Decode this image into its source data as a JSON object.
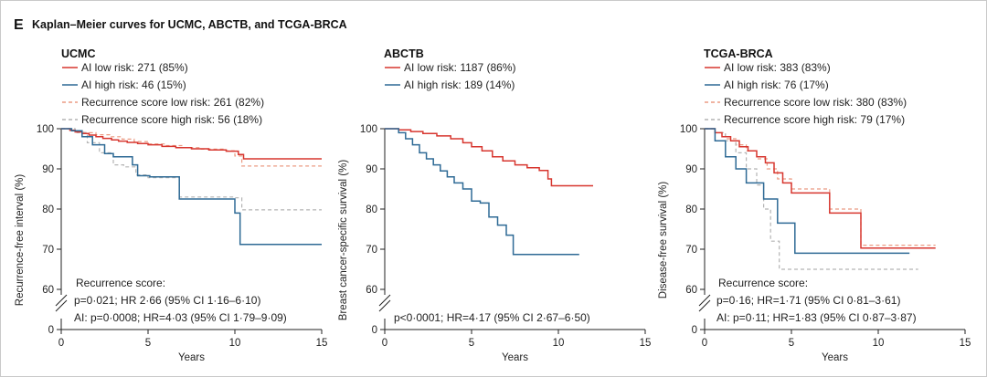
{
  "figure": {
    "panel_letter": "E",
    "title": "Kaplan–Meier curves for UCMC, ABCTB, and TCGA-BRCA"
  },
  "colors": {
    "ai_low": "#d7362f",
    "ai_high": "#2e6a95",
    "rs_low": "#eb9b83",
    "rs_high": "#b4b4b4",
    "axis": "#222222"
  },
  "chart_data": [
    {
      "type": "line",
      "title": "UCMC",
      "xlabel": "Years",
      "ylabel": "Recurrence-free interval (%)",
      "xlim": [
        0,
        15
      ],
      "xticks": [
        0,
        5,
        10,
        15
      ],
      "ylim": [
        60,
        100
      ],
      "yticks": [
        60,
        70,
        80,
        90,
        100
      ],
      "y_break": true,
      "y_break_origin_label": "0",
      "step": true,
      "legend": [
        "AI low risk: 271 (85%)",
        "AI high risk: 46 (15%)",
        "Recurrence score low risk: 261 (82%)",
        "Recurrence score high risk: 56 (18%)"
      ],
      "annotations": [
        "Recurrence score:",
        "p=0·021; HR 2·66 (95% CI 1·16–6·10)",
        "AI: p=0·0008; HR=4·03 (95% CI 1·79–9·09)"
      ],
      "series": [
        {
          "key": "ai_low",
          "dashed": false,
          "x": [
            0,
            0.5,
            0.8,
            1.2,
            1.6,
            2.0,
            2.4,
            2.9,
            3.3,
            3.8,
            4.4,
            5.0,
            5.8,
            6.6,
            7.5,
            8.5,
            9.5,
            10.2,
            10.5,
            15
          ],
          "y": [
            100,
            99.6,
            99.2,
            98.8,
            98.4,
            98.0,
            97.6,
            97.2,
            96.9,
            96.6,
            96.3,
            96.0,
            95.6,
            95.3,
            95.0,
            94.7,
            94.4,
            93.6,
            92.5,
            92.5
          ]
        },
        {
          "key": "ai_high",
          "dashed": false,
          "x": [
            0,
            0.6,
            1.2,
            1.8,
            2.5,
            3.0,
            4.1,
            4.4,
            5.1,
            6.8,
            10.0,
            10.3,
            15
          ],
          "y": [
            100,
            99.5,
            98.0,
            96.0,
            93.8,
            93.0,
            91.0,
            88.3,
            88.0,
            82.5,
            79.0,
            71.2,
            71.2
          ]
        },
        {
          "key": "rs_low",
          "dashed": true,
          "x": [
            0,
            0.7,
            1.3,
            2.0,
            2.8,
            3.5,
            4.2,
            5.0,
            6.0,
            7.0,
            8.0,
            9.5,
            10.0,
            10.4,
            15
          ],
          "y": [
            100,
            99.5,
            99.0,
            98.5,
            98.0,
            97.4,
            96.8,
            96.2,
            95.8,
            95.3,
            94.9,
            94.5,
            93.2,
            90.7,
            90.7
          ]
        },
        {
          "key": "rs_high",
          "dashed": true,
          "x": [
            0,
            0.8,
            1.5,
            2.2,
            3.0,
            3.6,
            4.3,
            5.0,
            6.8,
            10.0,
            10.4,
            15
          ],
          "y": [
            100,
            99.0,
            96.5,
            94.0,
            91.0,
            90.5,
            88.5,
            87.8,
            83.0,
            82.8,
            79.8,
            79.8
          ]
        }
      ]
    },
    {
      "type": "line",
      "title": "ABCTB",
      "xlabel": "Years",
      "ylabel": "Breast cancer-specific survival (%)",
      "xlim": [
        0,
        15
      ],
      "xticks": [
        0,
        5,
        10,
        15
      ],
      "ylim": [
        60,
        100
      ],
      "yticks": [
        60,
        70,
        80,
        90,
        100
      ],
      "y_break": true,
      "y_break_origin_label": "0",
      "step": true,
      "legend": [
        "AI low risk: 1187 (86%)",
        "AI high risk: 189 (14%)"
      ],
      "annotations": [
        "p<0·0001; HR=4·17 (95% CI 2·67–6·50)"
      ],
      "series": [
        {
          "key": "ai_low",
          "dashed": false,
          "x": [
            0,
            0.8,
            1.5,
            2.2,
            3.0,
            3.8,
            4.5,
            5.0,
            5.6,
            6.2,
            6.8,
            7.5,
            8.2,
            8.9,
            9.4,
            9.6,
            12
          ],
          "y": [
            100,
            99.7,
            99.3,
            98.8,
            98.2,
            97.5,
            96.5,
            95.5,
            94.5,
            93.0,
            92.0,
            91.0,
            90.3,
            89.6,
            87.5,
            85.8,
            85.8
          ]
        },
        {
          "key": "ai_high",
          "dashed": false,
          "x": [
            0,
            0.8,
            1.2,
            1.6,
            2.0,
            2.4,
            2.8,
            3.2,
            3.6,
            4.0,
            4.5,
            5.0,
            5.5,
            6.0,
            6.5,
            7.0,
            7.4,
            11.2
          ],
          "y": [
            100,
            99.0,
            97.5,
            96.0,
            94.0,
            92.5,
            91.0,
            89.5,
            88.0,
            86.5,
            85.0,
            82.0,
            81.5,
            78.0,
            76.0,
            73.5,
            68.7,
            68.7
          ]
        }
      ]
    },
    {
      "type": "line",
      "title": "TCGA-BRCA",
      "xlabel": "Years",
      "ylabel": "Disease-free survival (%)",
      "xlim": [
        0,
        15
      ],
      "xticks": [
        0,
        5,
        10,
        15
      ],
      "ylim": [
        60,
        100
      ],
      "yticks": [
        60,
        70,
        80,
        90,
        100
      ],
      "y_break": true,
      "y_break_origin_label": "0",
      "step": true,
      "legend": [
        "AI low risk: 383 (83%)",
        "AI high risk: 76 (17%)",
        "Recurrence score low risk: 380 (83%)",
        "Recurrence score high risk: 79 (17%)"
      ],
      "annotations": [
        "Recurrence score:",
        "p=0·16; HR=1·71 (95% CI 0·81–3·61)",
        "AI: p=0·11; HR=1·83 (95% CI 0·87–3·87)"
      ],
      "series": [
        {
          "key": "ai_low",
          "dashed": false,
          "x": [
            0,
            0.6,
            1.0,
            1.5,
            2.0,
            2.5,
            3.0,
            3.5,
            4.0,
            4.5,
            5.0,
            7.2,
            9.0,
            13.3
          ],
          "y": [
            100,
            99.0,
            98.0,
            97.0,
            95.5,
            94.5,
            93.0,
            91.5,
            89.0,
            86.5,
            84.0,
            79.0,
            70.3,
            70.3
          ]
        },
        {
          "key": "ai_high",
          "dashed": false,
          "x": [
            0,
            0.6,
            1.2,
            1.8,
            2.4,
            3.4,
            4.2,
            5.2,
            11.8
          ],
          "y": [
            100,
            97.0,
            93.0,
            90.0,
            86.5,
            82.5,
            76.5,
            69.0,
            69.0
          ]
        },
        {
          "key": "rs_low",
          "dashed": true,
          "x": [
            0,
            0.6,
            1.2,
            1.8,
            2.4,
            3.0,
            3.6,
            4.2,
            5.0,
            7.2,
            9.0,
            13.3
          ],
          "y": [
            100,
            99.0,
            97.5,
            96.0,
            94.5,
            92.5,
            90.0,
            87.5,
            85.0,
            80.0,
            71.0,
            71.0
          ]
        },
        {
          "key": "rs_high",
          "dashed": true,
          "x": [
            0,
            0.6,
            1.2,
            1.8,
            2.4,
            3.0,
            3.4,
            3.8,
            4.3,
            12.3
          ],
          "y": [
            100,
            99.0,
            97.0,
            94.0,
            90.0,
            86.0,
            80.0,
            72.0,
            65.0,
            65.0
          ]
        }
      ]
    }
  ]
}
